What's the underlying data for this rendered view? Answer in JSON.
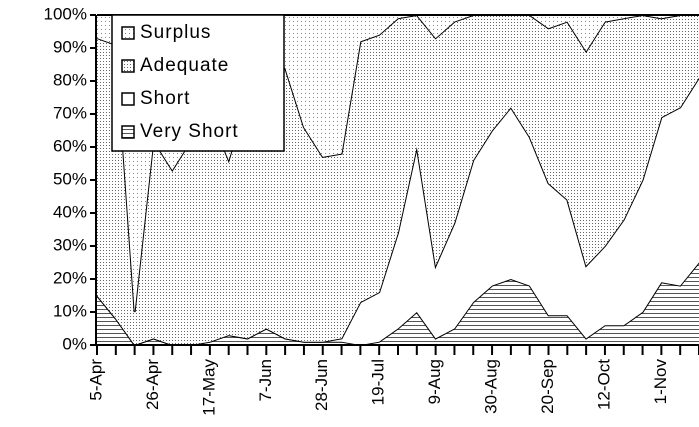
{
  "chart_data": {
    "type": "stacked-area-100",
    "categories": [
      "5-Apr",
      null,
      null,
      "26-Apr",
      null,
      null,
      "17-May",
      null,
      null,
      "7-Jun",
      null,
      null,
      "28-Jun",
      null,
      null,
      "19-Jul",
      null,
      null,
      "9-Aug",
      null,
      null,
      "30-Aug",
      null,
      null,
      "20-Sep",
      null,
      null,
      "12-Oct",
      null,
      null,
      "1-Nov",
      null,
      null
    ],
    "series": [
      {
        "name": "Very Short",
        "color": "#ffffff",
        "pattern": "horizontal-lines",
        "values": [
          15,
          8,
          0,
          2,
          0,
          0,
          1,
          3,
          2,
          5,
          2,
          1,
          1,
          1,
          0,
          1,
          5,
          10,
          2,
          5,
          13,
          18,
          20,
          18,
          9,
          9,
          2,
          6,
          6,
          10,
          19,
          18,
          25
        ]
      },
      {
        "name": "Short",
        "color": "#ffffff",
        "pattern": "none",
        "values": [
          0,
          0,
          0,
          0,
          0,
          0,
          0,
          0,
          0,
          0,
          0,
          0,
          0,
          1,
          13,
          15,
          29,
          50,
          22,
          32,
          43,
          47,
          52,
          45,
          40,
          35,
          22,
          24,
          32,
          40,
          50,
          54,
          56
        ]
      },
      {
        "name": "Adequate",
        "color": "#ffffff",
        "pattern": "fine-dots",
        "values": [
          78,
          83,
          10,
          60,
          53,
          62,
          69,
          53,
          73,
          75,
          82,
          65,
          56,
          56,
          79,
          78,
          65,
          40,
          69,
          61,
          44,
          35,
          28,
          37,
          47,
          54,
          65,
          68,
          61,
          50,
          30,
          28,
          19
        ]
      },
      {
        "name": "Surplus",
        "color": "#ffffff",
        "pattern": "dots",
        "values": [
          7,
          9,
          90,
          38,
          47,
          38,
          30,
          44,
          25,
          20,
          16,
          34,
          43,
          42,
          8,
          6,
          1,
          0,
          7,
          2,
          0,
          0,
          0,
          0,
          4,
          2,
          11,
          2,
          1,
          0,
          1,
          0,
          0
        ]
      }
    ],
    "legend": "upper-left",
    "ylim": [
      0,
      100
    ],
    "yticks": [
      {
        "value": 0,
        "label": "0%"
      },
      {
        "value": 10,
        "label": "10%"
      },
      {
        "value": 20,
        "label": "20%"
      },
      {
        "value": 30,
        "label": "30%"
      },
      {
        "value": 40,
        "label": "40%"
      },
      {
        "value": 50,
        "label": "50%"
      },
      {
        "value": 60,
        "label": "60%"
      },
      {
        "value": 70,
        "label": "70%"
      },
      {
        "value": 80,
        "label": "80%"
      },
      {
        "value": 90,
        "label": "90%"
      },
      {
        "value": 100,
        "label": "100%"
      }
    ]
  }
}
